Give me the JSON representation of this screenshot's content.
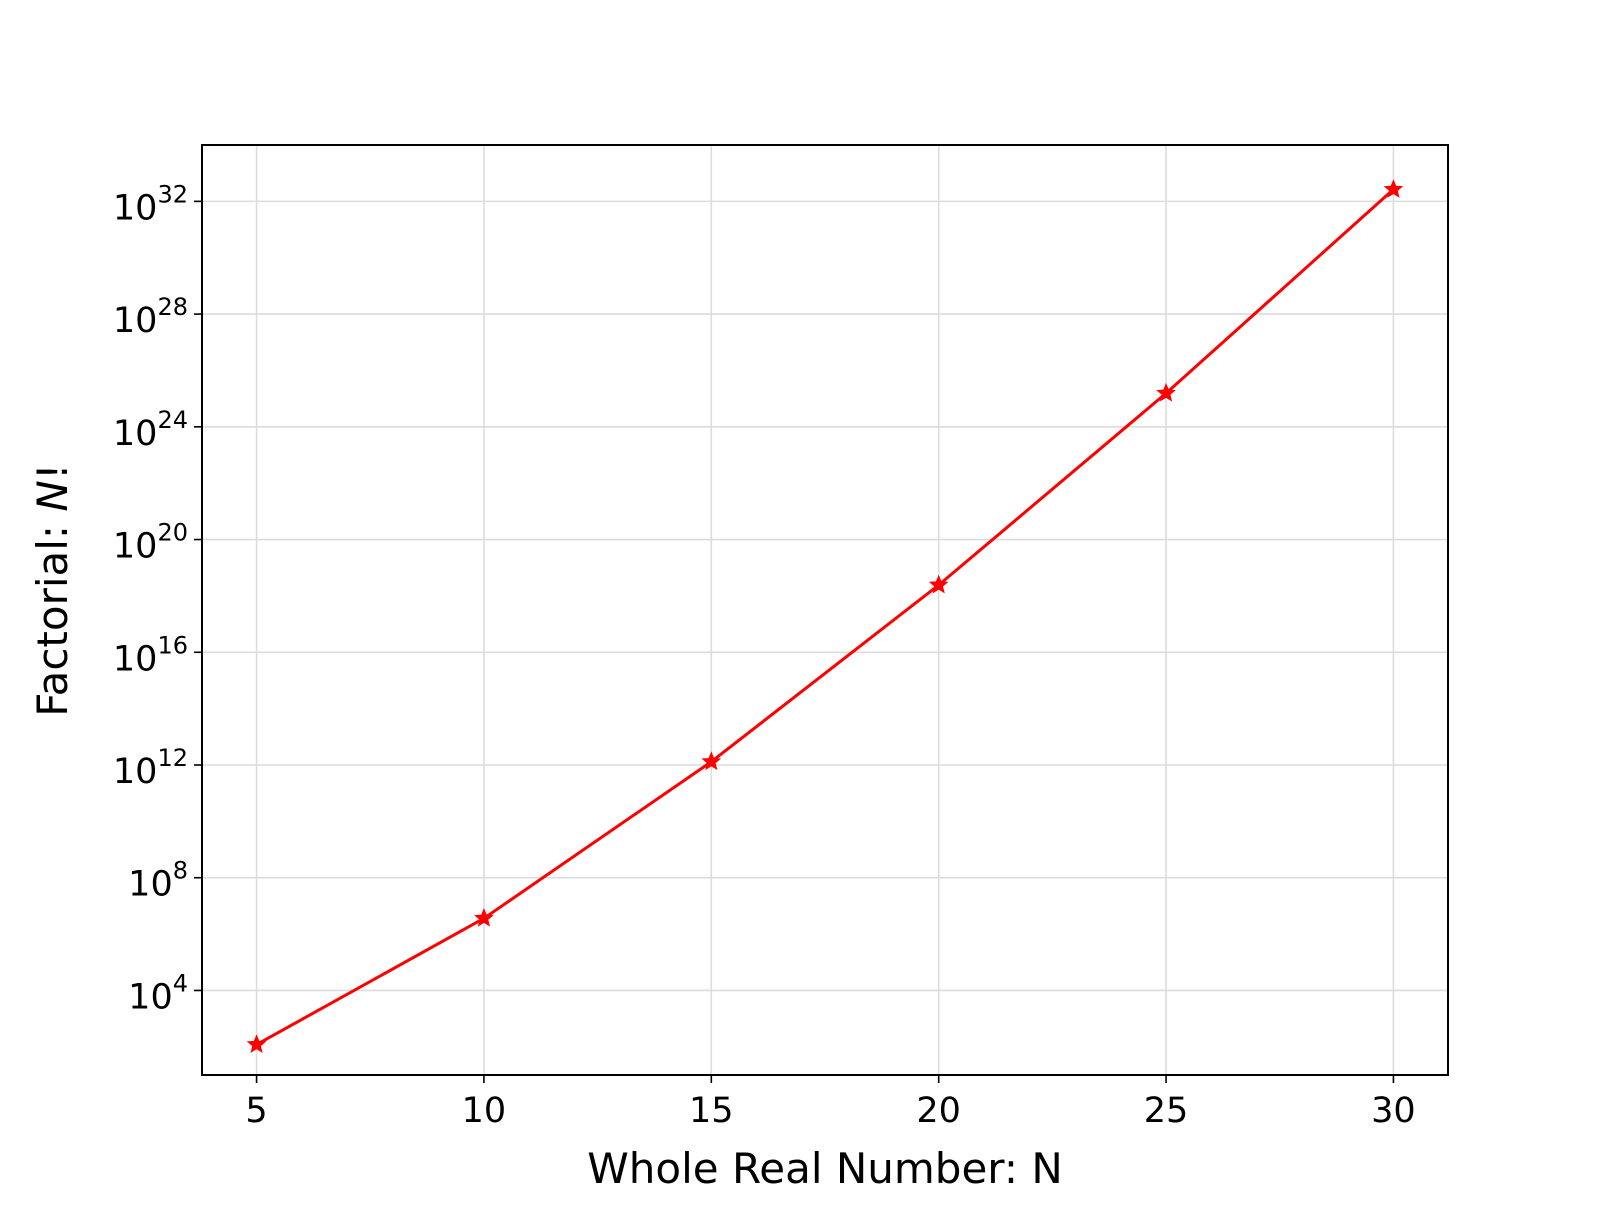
{
  "chart_data": {
    "type": "line",
    "title": "",
    "xlabel": "Whole Real Number: N",
    "ylabel_prefix": "Factorial: ",
    "ylabel_italic": "N",
    "ylabel_suffix": "!",
    "x_scale": "linear",
    "y_scale": "log",
    "xlim": [
      3.8,
      31.2
    ],
    "ylim": [
      10,
      1e+34
    ],
    "grid": true,
    "x_ticks": [
      5,
      10,
      15,
      20,
      25,
      30
    ],
    "x_tick_labels": [
      "5",
      "10",
      "15",
      "20",
      "25",
      "30"
    ],
    "y_ticks": [
      10000.0,
      100000000.0,
      1000000000000.0,
      1e+16,
      1e+20,
      1e+24,
      1e+28,
      1e+32
    ],
    "y_tick_labels": [
      {
        "base": "10",
        "exp": "4"
      },
      {
        "base": "10",
        "exp": "8"
      },
      {
        "base": "10",
        "exp": "12"
      },
      {
        "base": "10",
        "exp": "16"
      },
      {
        "base": "10",
        "exp": "20"
      },
      {
        "base": "10",
        "exp": "24"
      },
      {
        "base": "10",
        "exp": "28"
      },
      {
        "base": "10",
        "exp": "32"
      }
    ],
    "series": [
      {
        "x": [
          5,
          10,
          15,
          20,
          25,
          30
        ],
        "y": [
          120,
          3628800,
          1307674368000,
          2432902008176640000,
          1.5511210043330986e+25,
          2.652528598121911e+32
        ],
        "color": "#ff0000",
        "marker": "star"
      }
    ]
  }
}
